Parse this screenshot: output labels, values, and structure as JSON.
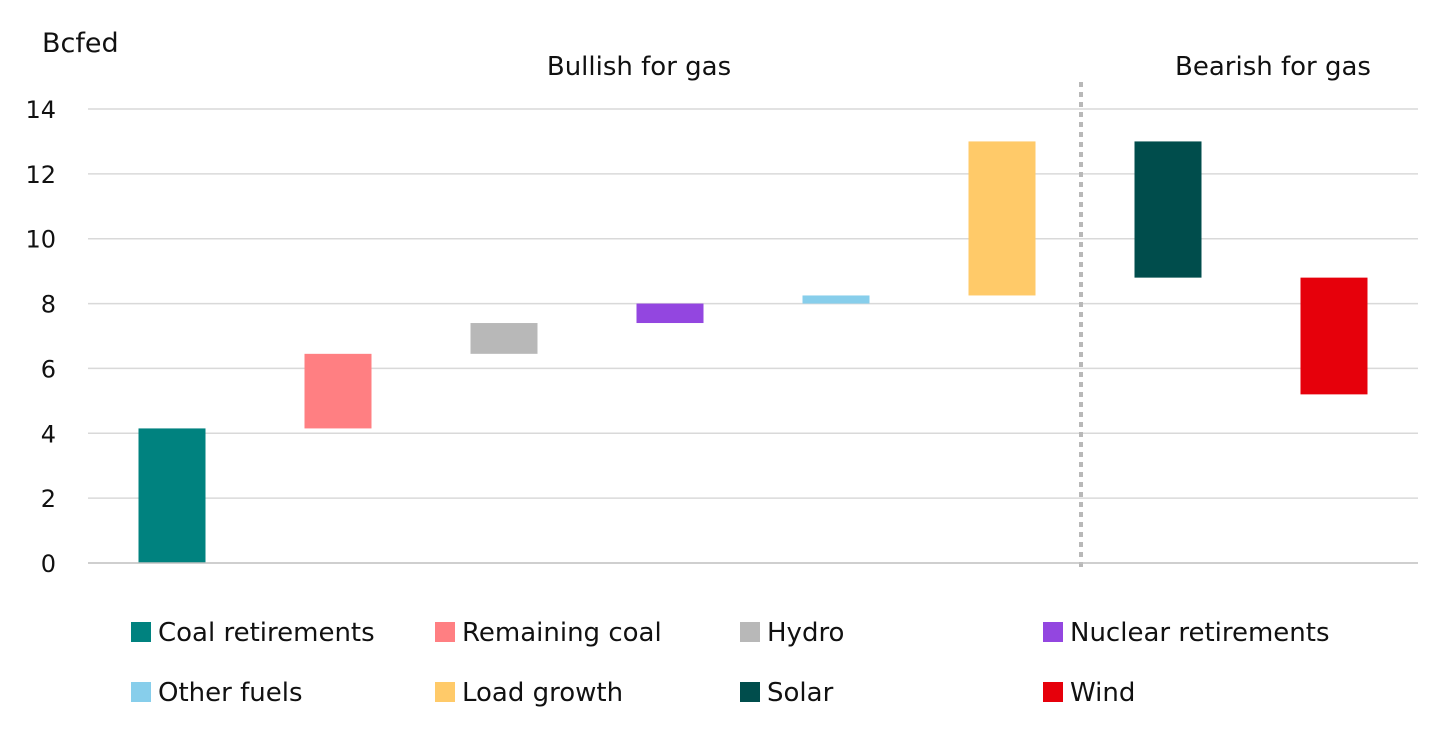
{
  "chart_data": {
    "type": "waterfall",
    "unit_label": "Bcfed",
    "ylim": [
      0,
      14
    ],
    "yticks": [
      0,
      2,
      4,
      6,
      8,
      10,
      12,
      14
    ],
    "grid": true,
    "regions": [
      {
        "label": "Bullish for gas",
        "categories": [
          "Coal retirements",
          "Remaining coal",
          "Hydro",
          "Nuclear retirements",
          "Other fuels",
          "Load growth"
        ]
      },
      {
        "label": "Bearish for gas",
        "categories": [
          "Solar",
          "Wind"
        ]
      }
    ],
    "series": [
      {
        "name": "Coal retirements",
        "start": 0,
        "end": 4.15,
        "color": "#00827F"
      },
      {
        "name": "Remaining coal",
        "start": 4.15,
        "end": 6.45,
        "color": "#FF7F82"
      },
      {
        "name": "Hydro",
        "start": 6.45,
        "end": 7.4,
        "color": "#B8B8B8"
      },
      {
        "name": "Nuclear retirements",
        "start": 7.4,
        "end": 8.0,
        "color": "#9346E0"
      },
      {
        "name": "Other fuels",
        "start": 8.0,
        "end": 8.25,
        "color": "#87CEEB"
      },
      {
        "name": "Load growth",
        "start": 8.25,
        "end": 13.0,
        "color": "#FFCA69"
      },
      {
        "name": "Solar",
        "start": 13.0,
        "end": 8.8,
        "color": "#004D4C"
      },
      {
        "name": "Wind",
        "start": 8.8,
        "end": 5.2,
        "color": "#E6000B"
      }
    ],
    "legend": {
      "position": "bottom",
      "items": [
        "Coal retirements",
        "Remaining coal",
        "Hydro",
        "Nuclear retirements",
        "Other fuels",
        "Load growth",
        "Solar",
        "Wind"
      ]
    }
  }
}
